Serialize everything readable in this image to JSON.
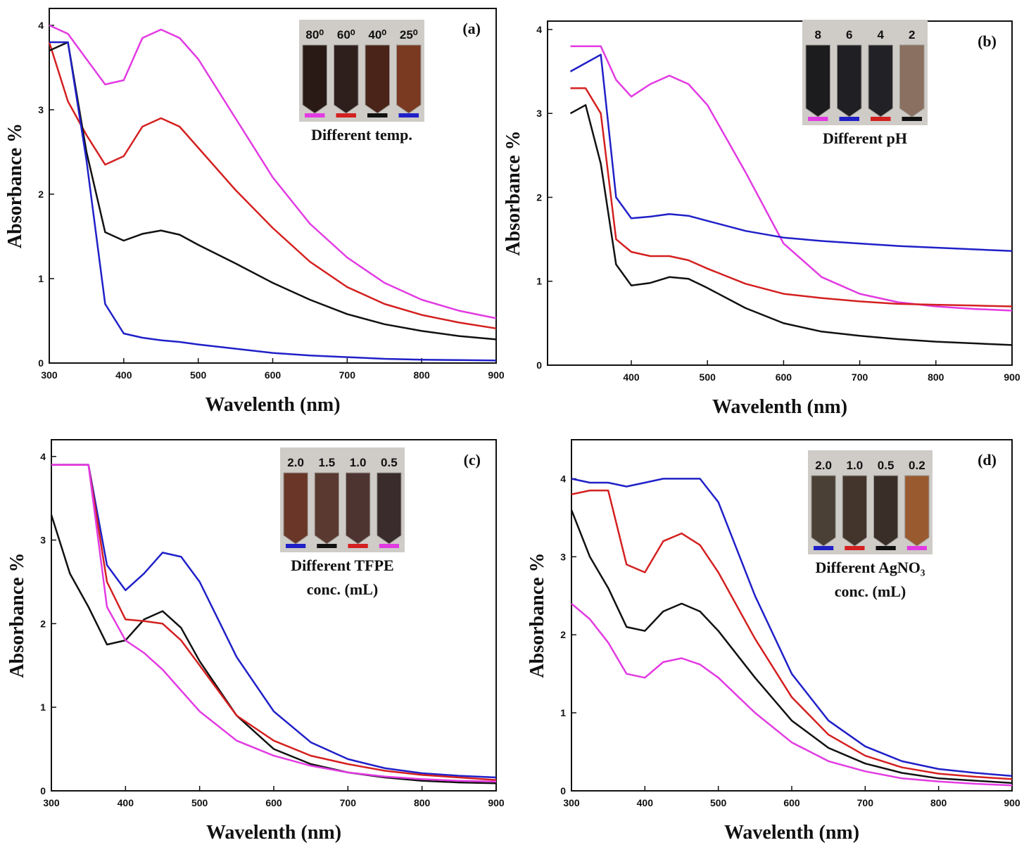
{
  "chart_data": [
    {
      "type": "line",
      "panel_label": "(a)",
      "xlabel": "Wavelenth (nm)",
      "ylabel": "Absorbance %",
      "xlim": [
        300,
        900
      ],
      "ylim": [
        0,
        4.2
      ],
      "xticks": [
        300,
        400,
        500,
        600,
        700,
        800,
        900
      ],
      "yticks": [
        0,
        1,
        2,
        3,
        4
      ],
      "annotation": [
        "Different temp."
      ],
      "x": [
        300,
        325,
        350,
        375,
        400,
        425,
        450,
        475,
        500,
        550,
        600,
        650,
        700,
        750,
        800,
        850,
        900
      ],
      "series": [
        {
          "name": "80⁰",
          "color": "#e23be2",
          "values": [
            4,
            3.9,
            3.6,
            3.3,
            3.35,
            3.85,
            3.95,
            3.85,
            3.6,
            2.9,
            2.2,
            1.65,
            1.25,
            0.95,
            0.75,
            0.62,
            0.53
          ]
        },
        {
          "name": "60⁰",
          "color": "#d42020",
          "values": [
            3.8,
            3.1,
            2.7,
            2.35,
            2.45,
            2.8,
            2.9,
            2.8,
            2.55,
            2.05,
            1.6,
            1.2,
            0.9,
            0.7,
            0.57,
            0.48,
            0.41
          ]
        },
        {
          "name": "40⁰",
          "color": "#111111",
          "values": [
            3.7,
            3.8,
            2.5,
            1.55,
            1.45,
            1.53,
            1.57,
            1.52,
            1.4,
            1.18,
            0.95,
            0.75,
            0.58,
            0.46,
            0.38,
            0.32,
            0.28
          ]
        },
        {
          "name": "25⁰",
          "color": "#2020c8",
          "values": [
            3.8,
            3.8,
            2.4,
            0.7,
            0.35,
            0.3,
            0.27,
            0.25,
            0.22,
            0.17,
            0.12,
            0.09,
            0.07,
            0.05,
            0.04,
            0.035,
            0.03
          ]
        }
      ]
    },
    {
      "type": "line",
      "panel_label": "(b)",
      "xlabel": "Wavelenth (nm)",
      "ylabel": "Absorbance %",
      "xlim": [
        290,
        900
      ],
      "ylim": [
        0,
        4.1
      ],
      "xticks": [
        400,
        500,
        600,
        700,
        800,
        900
      ],
      "yticks": [
        0,
        1,
        2,
        3,
        4
      ],
      "annotation": [
        "Different pH"
      ],
      "x": [
        320,
        340,
        360,
        380,
        400,
        425,
        450,
        475,
        500,
        550,
        600,
        650,
        700,
        750,
        800,
        850,
        900
      ],
      "series": [
        {
          "name": "8",
          "color": "#e23be2",
          "values": [
            3.8,
            3.8,
            3.8,
            3.4,
            3.2,
            3.35,
            3.45,
            3.35,
            3.1,
            2.3,
            1.45,
            1.05,
            0.85,
            0.75,
            0.7,
            0.67,
            0.65
          ]
        },
        {
          "name": "6",
          "color": "#2020c8",
          "values": [
            3.5,
            3.6,
            3.7,
            2.0,
            1.75,
            1.77,
            1.8,
            1.78,
            1.72,
            1.6,
            1.52,
            1.48,
            1.45,
            1.42,
            1.4,
            1.38,
            1.36
          ]
        },
        {
          "name": "4",
          "color": "#d42020",
          "values": [
            3.3,
            3.3,
            3.0,
            1.5,
            1.35,
            1.3,
            1.3,
            1.25,
            1.15,
            0.97,
            0.85,
            0.8,
            0.76,
            0.73,
            0.72,
            0.71,
            0.7
          ]
        },
        {
          "name": "2",
          "color": "#111111",
          "values": [
            3.0,
            3.1,
            2.4,
            1.2,
            0.95,
            0.98,
            1.05,
            1.03,
            0.92,
            0.68,
            0.5,
            0.4,
            0.35,
            0.31,
            0.28,
            0.26,
            0.24
          ]
        }
      ]
    },
    {
      "type": "line",
      "panel_label": "(c)",
      "xlabel": "Wavelenth (nm)",
      "ylabel": "Absorbance %",
      "xlim": [
        300,
        900
      ],
      "ylim": [
        0,
        4.2
      ],
      "xticks": [
        300,
        400,
        500,
        600,
        700,
        800,
        900
      ],
      "yticks": [
        0,
        1,
        2,
        3,
        4
      ],
      "annotation": [
        "Different TFPE",
        "conc. (mL)"
      ],
      "x": [
        300,
        325,
        350,
        375,
        400,
        425,
        450,
        475,
        500,
        550,
        600,
        650,
        700,
        750,
        800,
        850,
        900
      ],
      "series": [
        {
          "name": "2.0",
          "color": "#2020c8",
          "values": [
            3.9,
            3.9,
            3.9,
            2.7,
            2.4,
            2.6,
            2.85,
            2.8,
            2.5,
            1.6,
            0.95,
            0.58,
            0.38,
            0.27,
            0.21,
            0.18,
            0.16
          ]
        },
        {
          "name": "1.5",
          "color": "#111111",
          "values": [
            3.3,
            2.6,
            2.2,
            1.75,
            1.8,
            2.05,
            2.15,
            1.95,
            1.55,
            0.9,
            0.5,
            0.32,
            0.22,
            0.16,
            0.12,
            0.1,
            0.09
          ]
        },
        {
          "name": "1.0",
          "color": "#d42020",
          "values": [
            3.9,
            3.9,
            3.9,
            2.5,
            2.05,
            2.03,
            2.0,
            1.8,
            1.5,
            0.9,
            0.6,
            0.42,
            0.32,
            0.24,
            0.19,
            0.16,
            0.13
          ]
        },
        {
          "name": "0.5",
          "color": "#e23be2",
          "values": [
            3.9,
            3.9,
            3.9,
            2.2,
            1.8,
            1.65,
            1.45,
            1.2,
            0.95,
            0.6,
            0.42,
            0.3,
            0.22,
            0.17,
            0.14,
            0.12,
            0.11
          ]
        }
      ]
    },
    {
      "type": "line",
      "panel_label": "(d)",
      "xlabel": "Wavelenth (nm)",
      "ylabel": "Absorbance %",
      "xlim": [
        300,
        900
      ],
      "ylim": [
        0,
        4.5
      ],
      "xticks": [
        300,
        400,
        500,
        600,
        700,
        800,
        900
      ],
      "yticks": [
        0,
        1,
        2,
        3,
        4
      ],
      "annotation": [
        "Different AgNO₃",
        "conc. (mL)"
      ],
      "x": [
        300,
        325,
        350,
        375,
        400,
        425,
        450,
        475,
        500,
        550,
        600,
        650,
        700,
        750,
        800,
        850,
        900
      ],
      "series": [
        {
          "name": "2.0",
          "color": "#2020c8",
          "values": [
            4,
            3.95,
            3.95,
            3.9,
            3.95,
            4,
            4,
            4,
            3.7,
            2.5,
            1.5,
            0.9,
            0.57,
            0.38,
            0.28,
            0.23,
            0.19
          ]
        },
        {
          "name": "1.0",
          "color": "#d42020",
          "values": [
            3.8,
            3.85,
            3.85,
            2.9,
            2.8,
            3.2,
            3.3,
            3.15,
            2.8,
            1.95,
            1.2,
            0.72,
            0.45,
            0.3,
            0.22,
            0.18,
            0.15
          ]
        },
        {
          "name": "0.5",
          "color": "#111111",
          "values": [
            3.6,
            3.0,
            2.6,
            2.1,
            2.05,
            2.3,
            2.4,
            2.3,
            2.05,
            1.45,
            0.9,
            0.55,
            0.35,
            0.23,
            0.16,
            0.13,
            0.1
          ]
        },
        {
          "name": "0.2",
          "color": "#e23be2",
          "values": [
            2.4,
            2.2,
            1.9,
            1.5,
            1.45,
            1.65,
            1.7,
            1.62,
            1.45,
            1.0,
            0.62,
            0.38,
            0.25,
            0.16,
            0.12,
            0.09,
            0.07
          ]
        }
      ]
    }
  ]
}
